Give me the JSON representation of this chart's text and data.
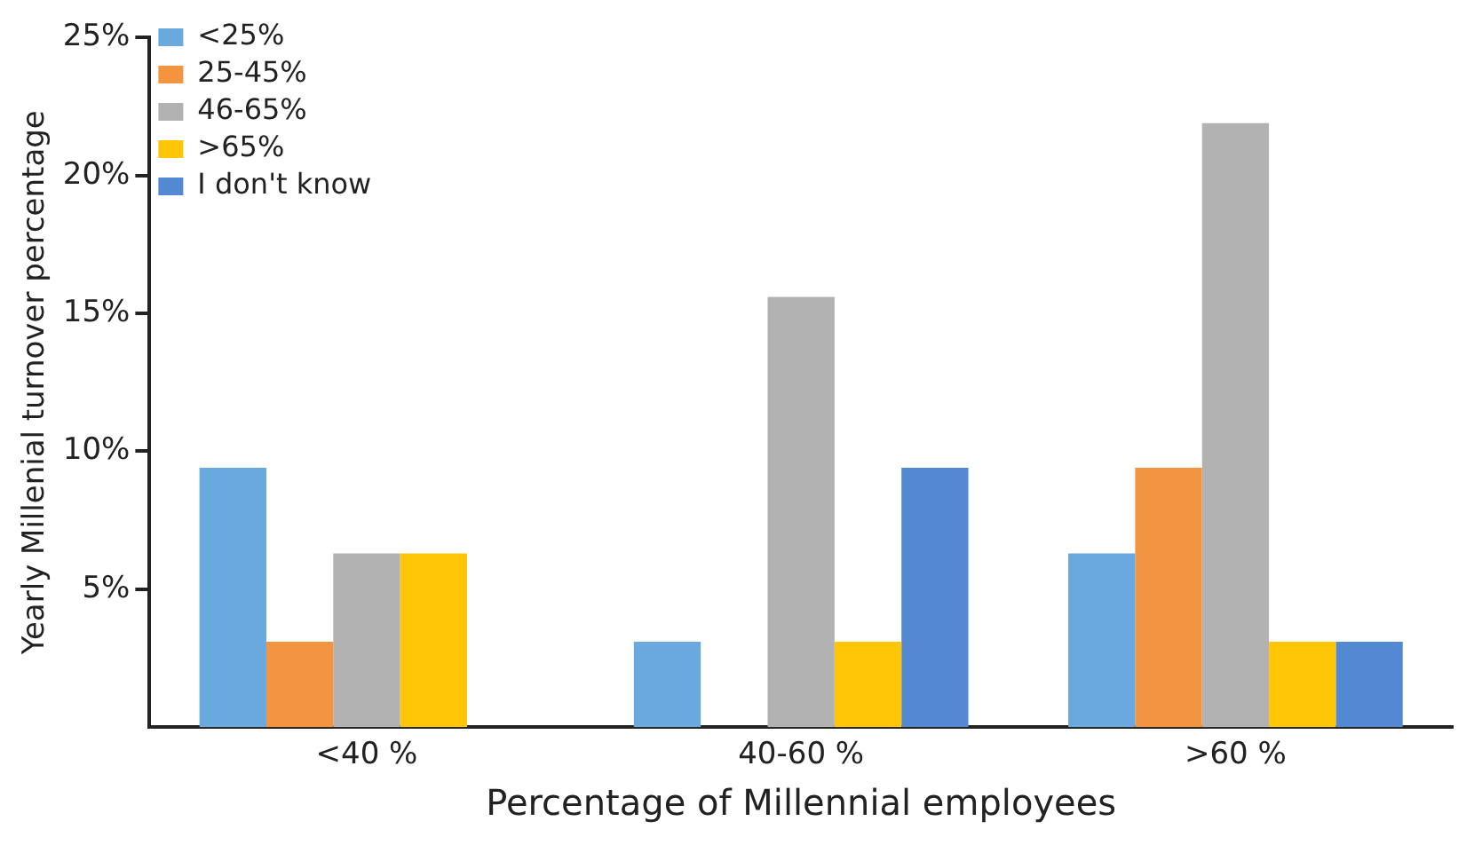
{
  "chart_data": {
    "type": "bar",
    "xlabel": "Percentage of Millennial employees",
    "ylabel": "Yearly Millenial turnover percentage",
    "categories": [
      "<40 %",
      "40-60 %",
      ">60 %"
    ],
    "series": [
      {
        "name": "<25%",
        "color": "#6aa9dd",
        "values": [
          9.4,
          3.1,
          6.3
        ]
      },
      {
        "name": "25-45%",
        "color": "#f39441",
        "values": [
          3.1,
          null,
          9.4
        ]
      },
      {
        "name": "46-65%",
        "color": "#b2b2b2",
        "values": [
          6.3,
          15.6,
          21.9
        ]
      },
      {
        "name": ">65%",
        "color": "#ffc608",
        "values": [
          6.3,
          3.1,
          3.1
        ]
      },
      {
        "name": "I don't know",
        "color": "#5289d2",
        "values": [
          null,
          9.4,
          3.1
        ]
      }
    ],
    "ylim": [
      0,
      25
    ],
    "yticks": [
      {
        "value": 5,
        "label": "5%"
      },
      {
        "value": 10,
        "label": "10%"
      },
      {
        "value": 15,
        "label": "15%"
      },
      {
        "value": 20,
        "label": "20%"
      },
      {
        "value": 25,
        "label": "25%"
      }
    ],
    "grid": false,
    "legend": "top left"
  }
}
